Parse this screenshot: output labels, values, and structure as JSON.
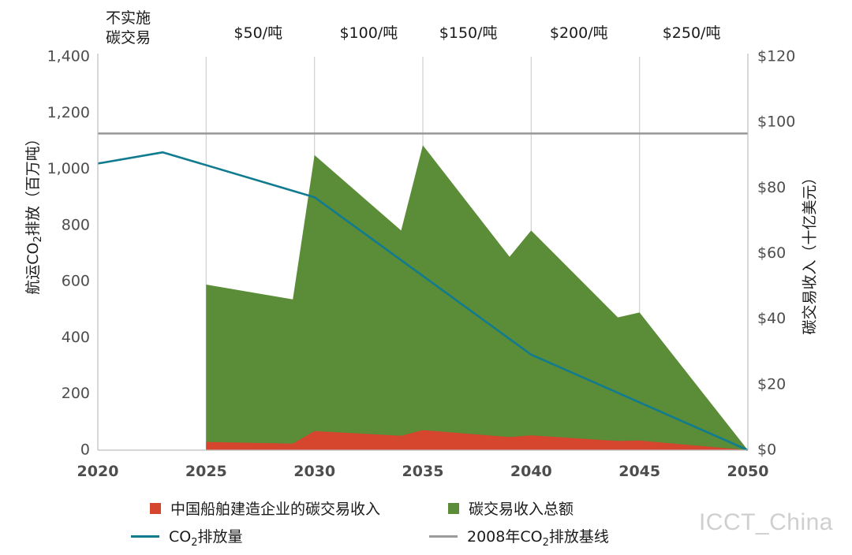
{
  "chart_data": {
    "type": "area",
    "x_axis": {
      "ticks": [
        "2020",
        "2025",
        "2030",
        "2035",
        "2040",
        "2045",
        "2050"
      ],
      "range": [
        2020,
        2050
      ]
    },
    "y_left": {
      "label_before": "航运CO",
      "label_sub": "2",
      "label_after": "排放（百万吨）",
      "ticks": [
        "1,400",
        "1,200",
        "1,000",
        "800",
        "600",
        "400",
        "200",
        "0"
      ],
      "range": [
        0,
        1400
      ]
    },
    "y_right": {
      "label": "碳交易收入（十亿美元）",
      "ticks": [
        "$120",
        "$100",
        "$80",
        "$60",
        "$40",
        "$20",
        "$0"
      ],
      "range": [
        0,
        120
      ]
    },
    "phases": [
      {
        "label_line1": "不实施",
        "label_line2": "碳交易",
        "x": 2021.4
      },
      {
        "label_line1": "$50/吨",
        "x": 2027.4
      },
      {
        "label_line1": "$100/吨",
        "x": 2032.5
      },
      {
        "label_line1": "$150/吨",
        "x": 2037.1
      },
      {
        "label_line1": "$200/吨",
        "x": 2042.2
      },
      {
        "label_line1": "$250/吨",
        "x": 2047.4
      }
    ],
    "series": [
      {
        "name": "碳交易收入总额",
        "kind": "area",
        "axis": "right",
        "color": "#5b8c37",
        "points": [
          [
            2025,
            0
          ],
          [
            2025,
            50.5
          ],
          [
            2029,
            46
          ],
          [
            2030,
            90
          ],
          [
            2034,
            67
          ],
          [
            2035,
            93
          ],
          [
            2039,
            59
          ],
          [
            2040,
            67
          ],
          [
            2044,
            40.5
          ],
          [
            2045,
            42
          ],
          [
            2050,
            0
          ]
        ]
      },
      {
        "name": "中国船舶建造企业的碳交易收入",
        "kind": "area",
        "axis": "right",
        "color": "#d6452d",
        "points": [
          [
            2025,
            0
          ],
          [
            2025,
            2.5
          ],
          [
            2029,
            2
          ],
          [
            2030,
            5.8
          ],
          [
            2034,
            4.4
          ],
          [
            2035,
            6.1
          ],
          [
            2039,
            4
          ],
          [
            2040,
            4.5
          ],
          [
            2044,
            2.8
          ],
          [
            2045,
            2.9
          ],
          [
            2050,
            0
          ]
        ]
      },
      {
        "name_before": "CO",
        "name_sub": "2",
        "name_after": "排放量",
        "kind": "line",
        "axis": "left",
        "color": "#117b8f",
        "points": [
          [
            2020,
            1020
          ],
          [
            2023,
            1060
          ],
          [
            2030,
            900
          ],
          [
            2040,
            340
          ],
          [
            2050,
            0
          ]
        ]
      },
      {
        "name_before": "2008年CO",
        "name_sub": "2",
        "name_after": "排放基线",
        "kind": "hline",
        "axis": "left",
        "color": "#9b9b9b",
        "value": 1127
      }
    ],
    "grid": "vertical"
  },
  "watermark": "ICCT_China"
}
